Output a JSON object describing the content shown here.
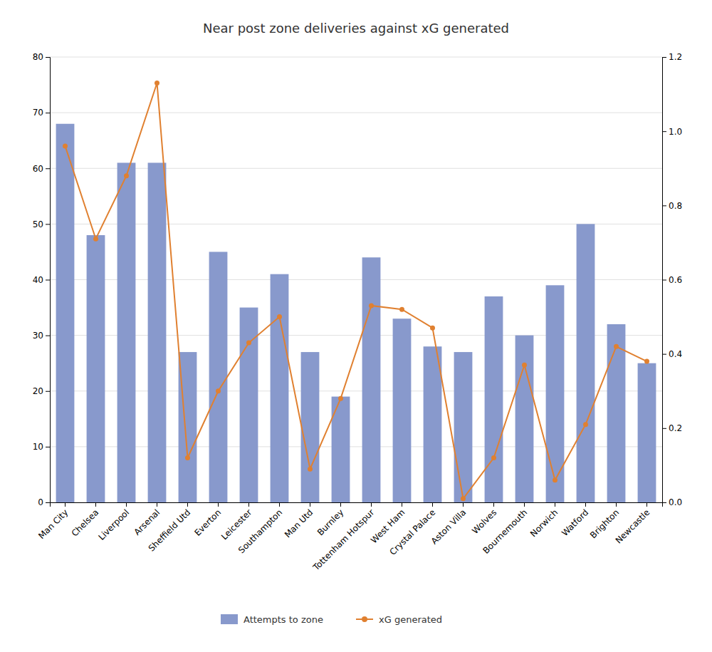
{
  "chart_data": {
    "type": "bar",
    "title": "Near post zone deliveries against xG generated",
    "categories": [
      "Man City",
      "Chelsea",
      "Liverpool",
      "Arsenal",
      "Sheffield Utd",
      "Everton",
      "Leicester",
      "Southampton",
      "Man Utd",
      "Burnley",
      "Tottenham Hotspur",
      "West Ham",
      "Crystal Palace",
      "Aston Villa",
      "Wolves",
      "Bournemouth",
      "Norwich",
      "Watford",
      "Brighton",
      "Newcastle"
    ],
    "series": [
      {
        "name": "Attempts to zone",
        "type": "bar",
        "color": "#8899cc",
        "values": [
          68,
          48,
          61,
          61,
          27,
          45,
          35,
          41,
          27,
          19,
          44,
          33,
          28,
          27,
          37,
          30,
          39,
          50,
          32,
          25
        ]
      },
      {
        "name": "xG generated",
        "type": "line",
        "axis": "y2",
        "color": "#e08030",
        "marker": "circle",
        "values": [
          0.96,
          0.71,
          0.88,
          1.13,
          0.12,
          0.3,
          0.43,
          0.5,
          0.09,
          0.28,
          0.53,
          0.52,
          0.47,
          0.01,
          0.12,
          0.37,
          0.06,
          0.21,
          0.42,
          0.38
        ]
      }
    ],
    "ylim": [
      0,
      80
    ],
    "yticks": [
      0,
      10,
      20,
      30,
      40,
      50,
      60,
      70,
      80
    ],
    "y2lim": [
      0,
      1.2
    ],
    "y2ticks": [
      {
        "value": 0,
        "label": "0.0"
      },
      0.2,
      0.4,
      0.6,
      0.8,
      {
        "value": 1.0,
        "label": "1.0"
      },
      1.2
    ],
    "grid": true,
    "legend": "bottom"
  }
}
